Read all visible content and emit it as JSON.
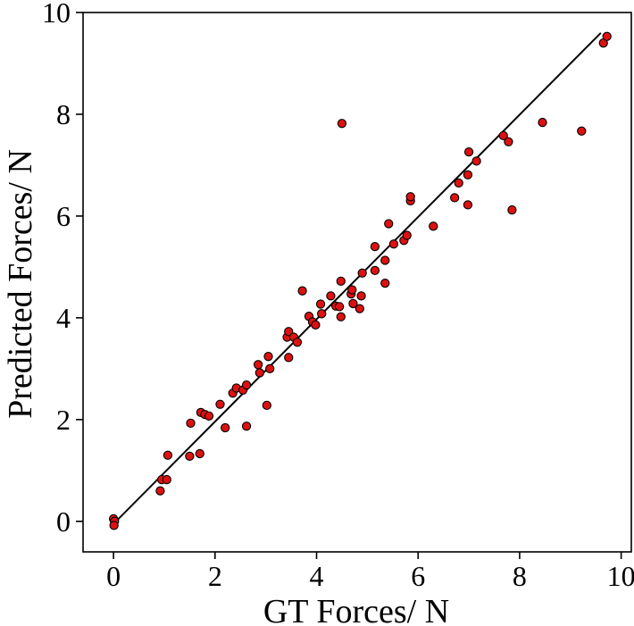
{
  "chart_data": {
    "type": "scatter",
    "title": "",
    "xlabel": "GT Forces/ N",
    "ylabel": "Predicted Forces/ N",
    "xlim": [
      -0.6,
      10.2
    ],
    "ylim": [
      -0.6,
      10.0
    ],
    "xticks": [
      0,
      2,
      4,
      6,
      8,
      10
    ],
    "yticks": [
      0,
      2,
      4,
      6,
      8,
      10
    ],
    "xtick_labels": [
      "0",
      "2",
      "4",
      "6",
      "8",
      "10"
    ],
    "ytick_labels": [
      "0",
      "2",
      "4",
      "6",
      "8",
      "10"
    ],
    "grid": false,
    "marker_color": "#dd1111",
    "marker_edge_color": "#000000",
    "line_color": "#000000",
    "fit_line": {
      "x": [
        -0.05,
        9.6
      ],
      "y": [
        -0.1,
        9.6
      ]
    },
    "points": [
      {
        "x": 0.0,
        "y": 0.05
      },
      {
        "x": 0.02,
        "y": 0.0
      },
      {
        "x": 0.01,
        "y": -0.08
      },
      {
        "x": 0.92,
        "y": 0.6
      },
      {
        "x": 0.95,
        "y": 0.82
      },
      {
        "x": 1.05,
        "y": 0.82
      },
      {
        "x": 1.07,
        "y": 1.3
      },
      {
        "x": 1.5,
        "y": 1.28
      },
      {
        "x": 1.52,
        "y": 1.93
      },
      {
        "x": 1.7,
        "y": 1.33
      },
      {
        "x": 1.72,
        "y": 2.14
      },
      {
        "x": 1.8,
        "y": 2.1
      },
      {
        "x": 1.88,
        "y": 2.07
      },
      {
        "x": 2.1,
        "y": 2.3
      },
      {
        "x": 2.2,
        "y": 1.84
      },
      {
        "x": 2.35,
        "y": 2.52
      },
      {
        "x": 2.42,
        "y": 2.62
      },
      {
        "x": 2.55,
        "y": 2.58
      },
      {
        "x": 2.62,
        "y": 2.68
      },
      {
        "x": 2.62,
        "y": 1.87
      },
      {
        "x": 2.88,
        "y": 2.92
      },
      {
        "x": 2.85,
        "y": 3.08
      },
      {
        "x": 3.02,
        "y": 2.28
      },
      {
        "x": 3.05,
        "y": 3.24
      },
      {
        "x": 3.08,
        "y": 3.0
      },
      {
        "x": 3.42,
        "y": 3.62
      },
      {
        "x": 3.45,
        "y": 3.73
      },
      {
        "x": 3.45,
        "y": 3.22
      },
      {
        "x": 3.55,
        "y": 3.62
      },
      {
        "x": 3.62,
        "y": 3.52
      },
      {
        "x": 3.72,
        "y": 4.53
      },
      {
        "x": 3.85,
        "y": 4.03
      },
      {
        "x": 3.92,
        "y": 3.92
      },
      {
        "x": 3.98,
        "y": 3.86
      },
      {
        "x": 4.08,
        "y": 4.27
      },
      {
        "x": 4.1,
        "y": 4.08
      },
      {
        "x": 4.28,
        "y": 4.43
      },
      {
        "x": 4.38,
        "y": 4.23
      },
      {
        "x": 4.45,
        "y": 4.22
      },
      {
        "x": 4.48,
        "y": 4.72
      },
      {
        "x": 4.48,
        "y": 4.02
      },
      {
        "x": 4.5,
        "y": 7.82
      },
      {
        "x": 4.68,
        "y": 4.47
      },
      {
        "x": 4.7,
        "y": 4.55
      },
      {
        "x": 4.72,
        "y": 4.28
      },
      {
        "x": 4.85,
        "y": 4.18
      },
      {
        "x": 4.88,
        "y": 4.43
      },
      {
        "x": 4.9,
        "y": 4.88
      },
      {
        "x": 5.15,
        "y": 4.93
      },
      {
        "x": 5.15,
        "y": 5.4
      },
      {
        "x": 5.35,
        "y": 5.13
      },
      {
        "x": 5.35,
        "y": 4.68
      },
      {
        "x": 5.42,
        "y": 5.85
      },
      {
        "x": 5.52,
        "y": 5.45
      },
      {
        "x": 5.72,
        "y": 5.52
      },
      {
        "x": 5.78,
        "y": 5.62
      },
      {
        "x": 5.85,
        "y": 6.3
      },
      {
        "x": 5.85,
        "y": 6.38
      },
      {
        "x": 6.3,
        "y": 5.8
      },
      {
        "x": 6.72,
        "y": 6.36
      },
      {
        "x": 6.8,
        "y": 6.65
      },
      {
        "x": 6.98,
        "y": 6.81
      },
      {
        "x": 6.98,
        "y": 6.22
      },
      {
        "x": 7.0,
        "y": 7.26
      },
      {
        "x": 7.15,
        "y": 7.08
      },
      {
        "x": 7.68,
        "y": 7.58
      },
      {
        "x": 7.78,
        "y": 7.46
      },
      {
        "x": 7.85,
        "y": 6.12
      },
      {
        "x": 8.45,
        "y": 7.84
      },
      {
        "x": 9.22,
        "y": 7.67
      },
      {
        "x": 9.65,
        "y": 9.4
      },
      {
        "x": 9.72,
        "y": 9.53
      }
    ]
  }
}
